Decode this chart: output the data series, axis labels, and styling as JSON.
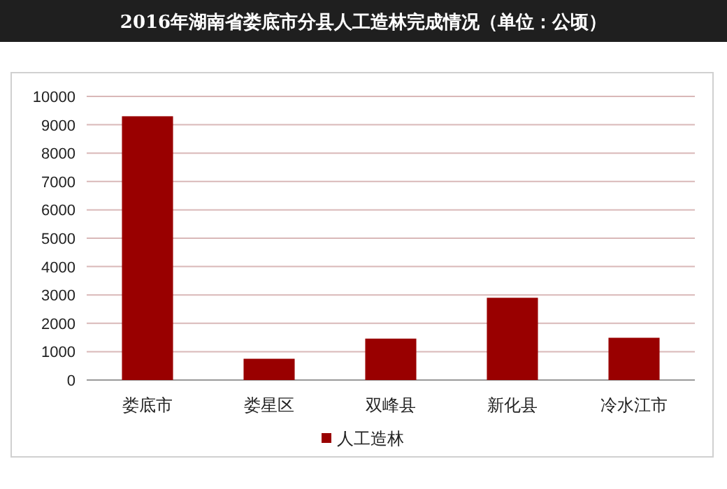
{
  "chart_data": {
    "type": "bar",
    "title": "2016年湖南省娄底市分县人工造林完成情况（单位：公顷）",
    "categories": [
      "娄底市",
      "娄星区",
      "双峰县",
      "新化县",
      "冷水江市"
    ],
    "series": [
      {
        "name": "人工造林",
        "color": "#990000",
        "values": [
          9300,
          750,
          1460,
          2900,
          1490
        ]
      }
    ],
    "ylim": [
      0,
      10000
    ],
    "yticks": [
      0,
      1000,
      2000,
      3000,
      4000,
      5000,
      6000,
      7000,
      8000,
      9000,
      10000
    ],
    "grid": "y",
    "legend": "bottom"
  }
}
